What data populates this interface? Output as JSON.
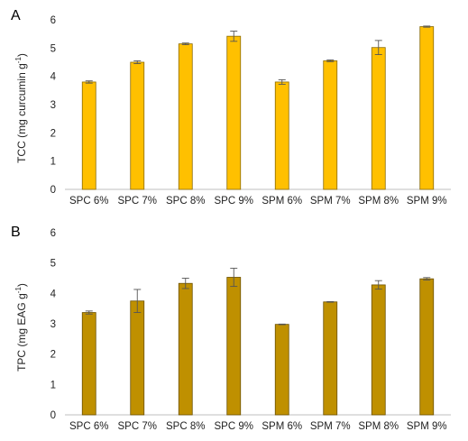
{
  "chart_data": [
    {
      "panel_label": "A",
      "type": "bar",
      "ylabel": "TCC (mg curcumin g",
      "ylabel_sup": "-1",
      "ylabel_close": ")",
      "ylim": [
        0,
        6
      ],
      "yticks": [
        0,
        1,
        2,
        3,
        4,
        5,
        6
      ],
      "categories": [
        "SPC 6%",
        "SPC 7%",
        "SPC 8%",
        "SPC 9%",
        "SPM 6%",
        "SPM 7%",
        "SPM 8%",
        "SPM 9%"
      ],
      "values": [
        3.8,
        4.5,
        5.15,
        5.42,
        3.8,
        4.55,
        5.02,
        5.76
      ],
      "errors": [
        0.04,
        0.05,
        0.03,
        0.18,
        0.08,
        0.03,
        0.25,
        0.02
      ],
      "bar_color": "#ffc000",
      "bar_stroke": "#8a6a00",
      "grid": false
    },
    {
      "panel_label": "B",
      "type": "bar",
      "ylabel": "TPC (mg EAG g",
      "ylabel_sup": "-1",
      "ylabel_close": ")",
      "ylim": [
        0,
        6
      ],
      "yticks": [
        0,
        1,
        2,
        3,
        4,
        5,
        6
      ],
      "categories": [
        "SPC 6%",
        "SPC 7%",
        "SPC 8%",
        "SPC 9%",
        "SPM 6%",
        "SPM 7%",
        "SPM 8%",
        "SPM 9%"
      ],
      "values": [
        3.37,
        3.75,
        4.33,
        4.53,
        2.98,
        3.72,
        4.28,
        4.48
      ],
      "errors": [
        0.05,
        0.38,
        0.17,
        0.3,
        0.01,
        0.01,
        0.14,
        0.04
      ],
      "bar_color": "#bf9000",
      "bar_stroke": "#6b5000",
      "grid": false
    }
  ]
}
